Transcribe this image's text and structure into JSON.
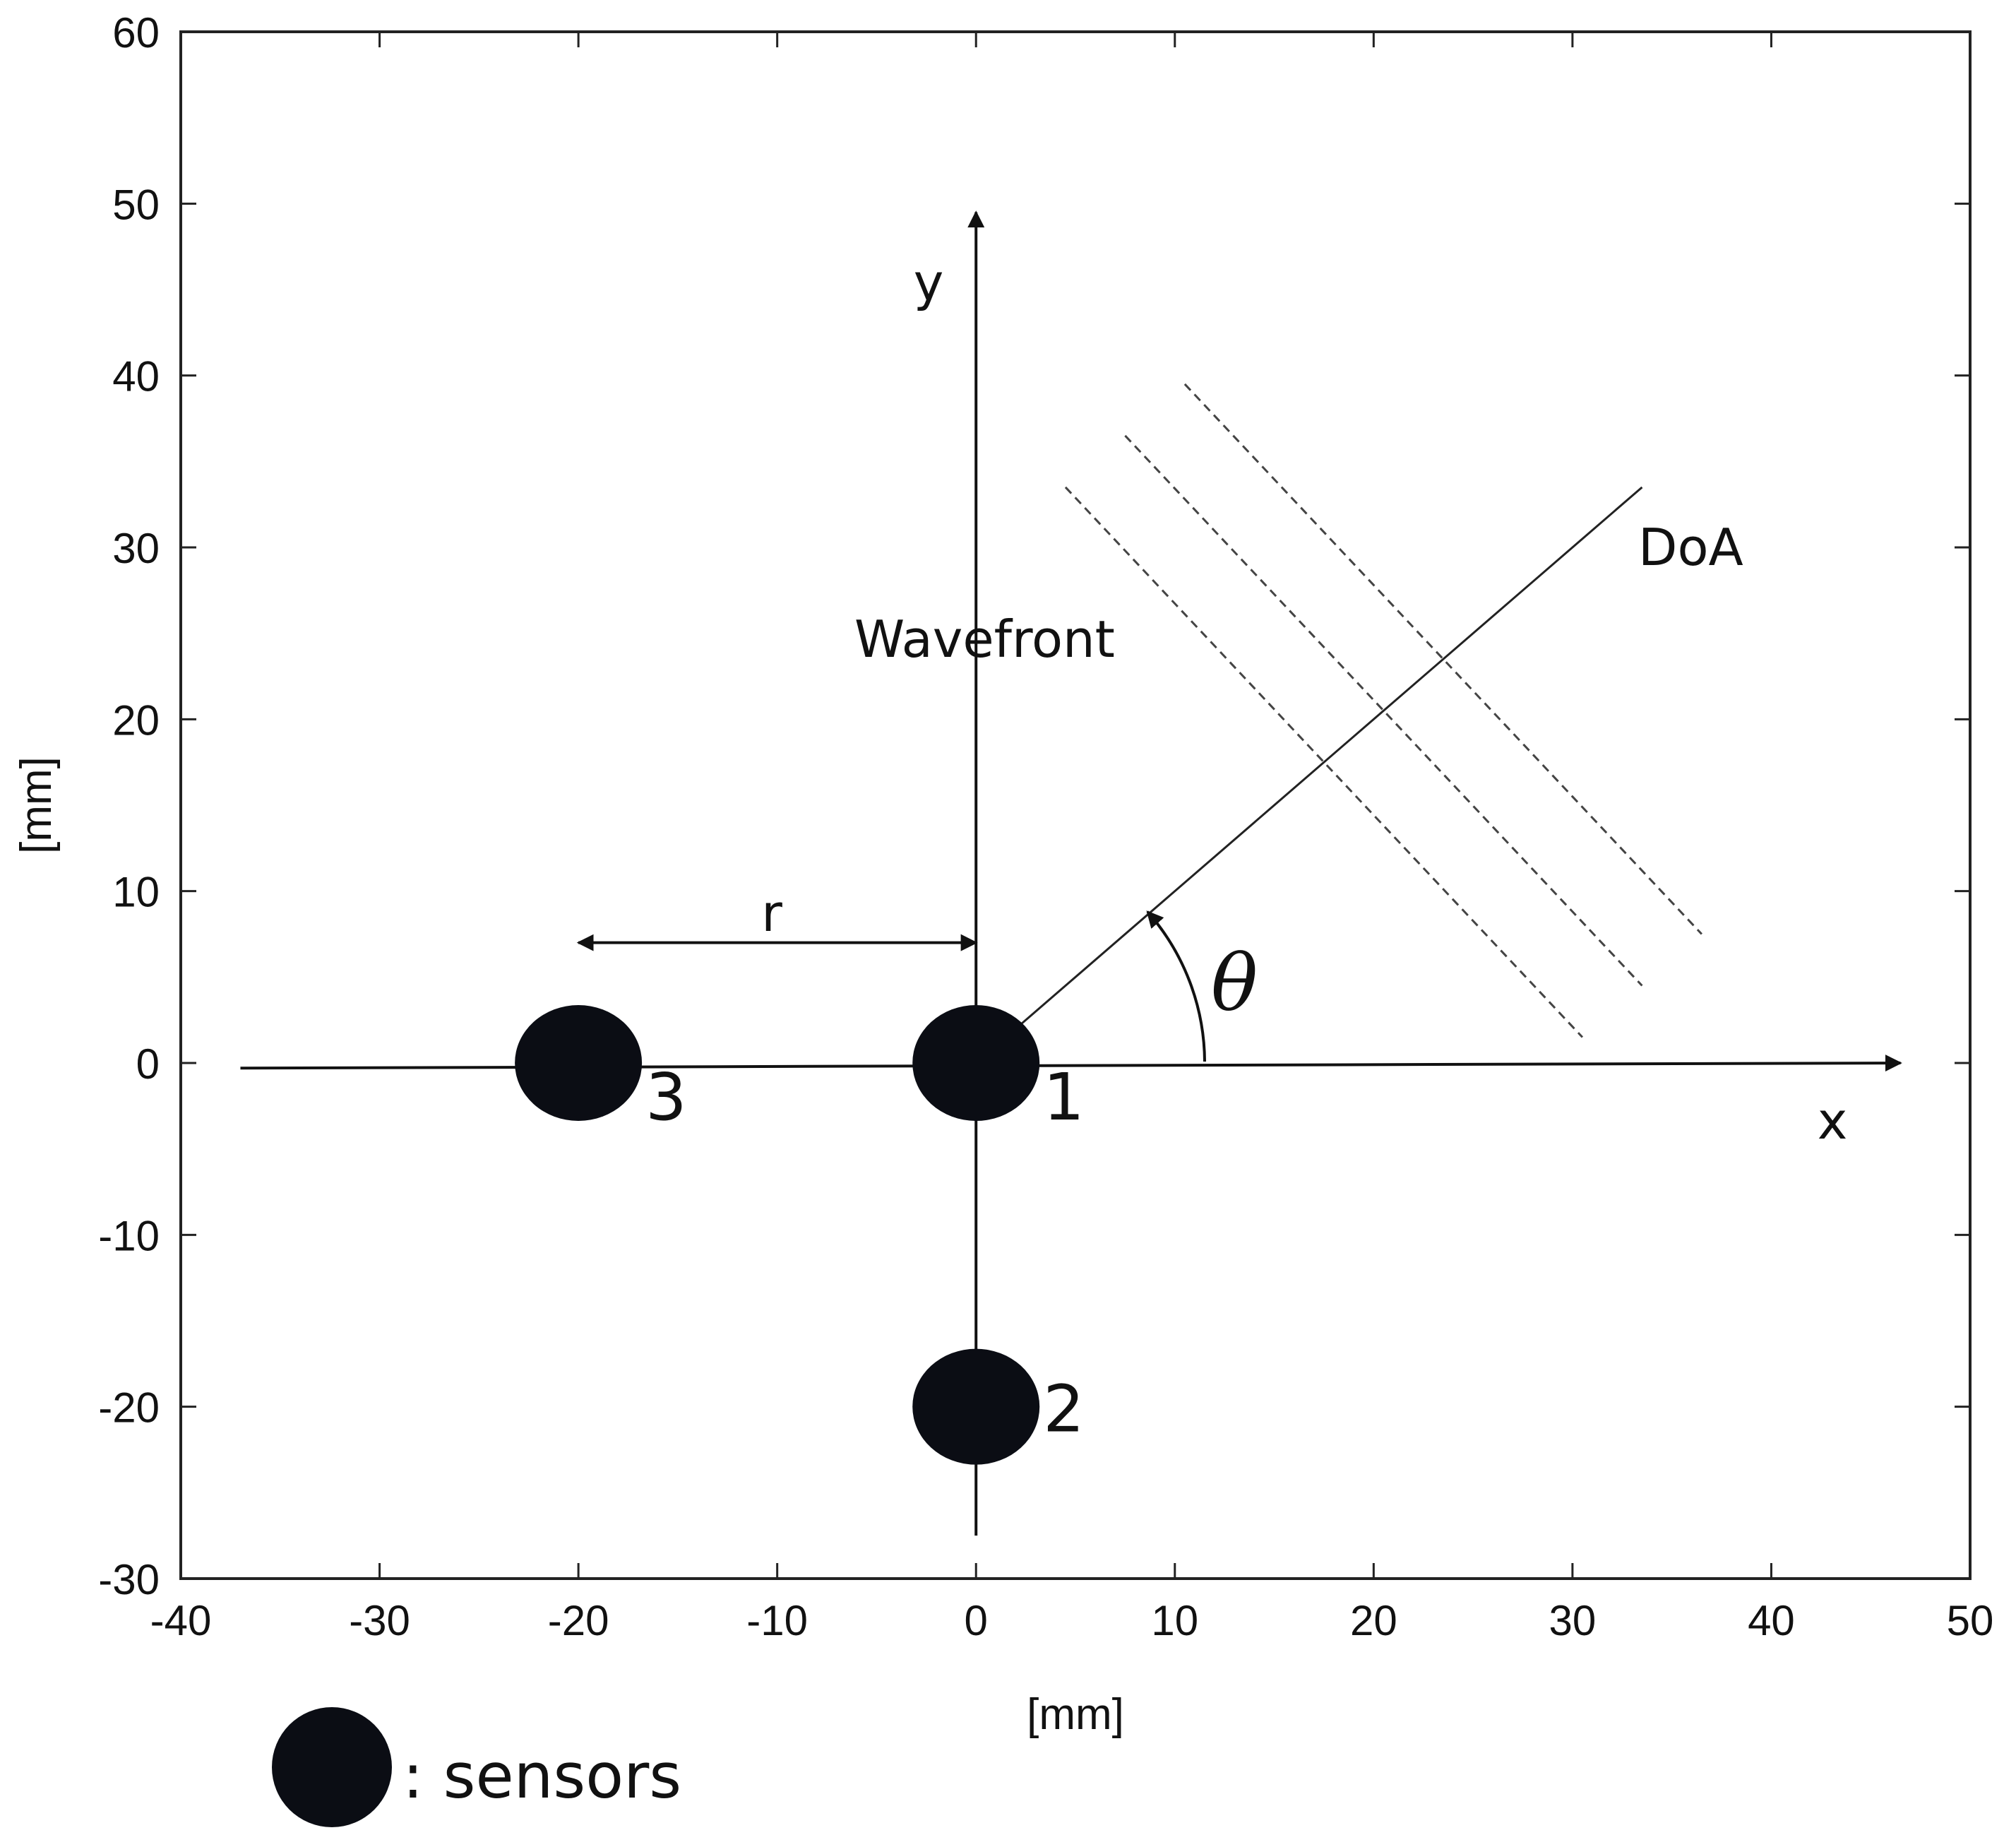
{
  "chart_data": {
    "type": "scatter",
    "title": "",
    "xlabel": "[mm]",
    "ylabel": "[mm]",
    "xlim": [
      -40,
      50
    ],
    "ylim": [
      -30,
      60
    ],
    "x_ticks": [
      -40,
      -30,
      -20,
      -10,
      0,
      10,
      20,
      30,
      40,
      50
    ],
    "y_ticks": [
      -30,
      -20,
      -10,
      0,
      10,
      20,
      30,
      40,
      50,
      60
    ],
    "grid": false,
    "points": [
      {
        "label": "1",
        "x": 0,
        "y": 0
      },
      {
        "label": "2",
        "x": 0,
        "y": -20
      },
      {
        "label": "3",
        "x": -20,
        "y": 0
      }
    ],
    "local_axes": {
      "x_label": "x",
      "y_label": "y"
    },
    "doa_line": {
      "label": "DoA",
      "from": [
        2,
        2
      ],
      "to": [
        33.5,
        33.5
      ]
    },
    "wavefronts": {
      "label": "Wavefront",
      "lines": [
        {
          "from": [
            4.5,
            33.5
          ],
          "to": [
            30.5,
            1.5
          ]
        },
        {
          "from": [
            7.5,
            36.5
          ],
          "to": [
            33.5,
            4.5
          ]
        },
        {
          "from": [
            10.5,
            39.5
          ],
          "to": [
            36.5,
            7.5
          ]
        }
      ]
    },
    "distance_marker": {
      "label": "r",
      "from": [
        -20,
        7
      ],
      "to": [
        0,
        7
      ]
    },
    "angle": {
      "label": "θ"
    },
    "legend": {
      "marker": "filled-circle",
      "text": ": sensors",
      "placement": "bottom-left"
    }
  }
}
